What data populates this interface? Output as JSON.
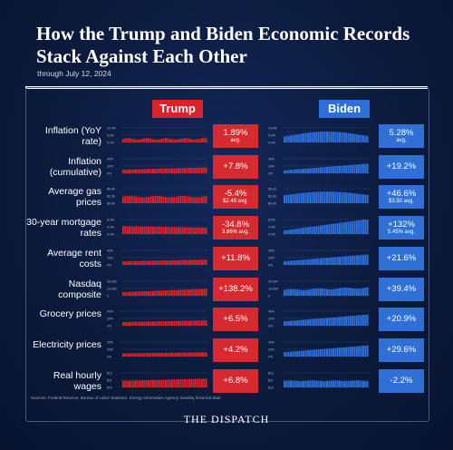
{
  "title": "How the Trump and Biden Economic Records Stack Against Each Other",
  "subtitle": "through July 12, 2024",
  "headers": {
    "trump": "Trump",
    "biden": "Biden"
  },
  "source": "Sources: Federal Reserve, Bureau of Labor Statistics, Energy Information Agency, Nasdaq historical data",
  "brand": "THE DISPATCH",
  "colors": {
    "trump": "#d9222a",
    "biden": "#2d6fd8",
    "background": "#0b1a3a"
  },
  "chart_data": {
    "type": "bar",
    "rows": [
      {
        "label": "Inflation (YoY rate)",
        "trump_value": "1.89%",
        "trump_sub": "avg.",
        "biden_value": "5.28%",
        "biden_sub": "avg.",
        "trump_ticks": [
          "10.0%",
          "5.0%",
          "0.0%"
        ],
        "biden_ticks": [
          "10.0%",
          "5.0%",
          "0.0%"
        ]
      },
      {
        "label": "Inflation (cumulative)",
        "trump_value": "+7.8%",
        "trump_sub": "",
        "biden_value": "+19.2%",
        "biden_sub": "",
        "trump_ticks": [
          "40%",
          "20%",
          "0%"
        ],
        "biden_ticks": [
          "40%",
          "20%",
          "0%"
        ]
      },
      {
        "label": "Average gas prices",
        "trump_value": "-5.4%",
        "trump_sub": "$2.49 avg.",
        "biden_value": "+46.6%",
        "biden_sub": "$3.50 avg.",
        "trump_ticks": [
          "$5.00",
          "$2.50",
          "$0.00"
        ],
        "biden_ticks": [
          "$5.00",
          "$2.50",
          "$0.00"
        ]
      },
      {
        "label": "30-year mortgage rates",
        "trump_value": "-34.8%",
        "trump_sub": "3.86% avg.",
        "biden_value": "+132%",
        "biden_sub": "5.45% avg.",
        "trump_ticks": [
          "8.0%",
          "4.0%",
          "0.0%"
        ],
        "biden_ticks": [
          "8.0%",
          "4.0%",
          "0.0%"
        ]
      },
      {
        "label": "Average rent costs",
        "trump_value": "+11.8%",
        "trump_sub": "",
        "biden_value": "+21.6%",
        "biden_sub": "",
        "trump_ticks": [
          "40%",
          "20%",
          "0%"
        ],
        "biden_ticks": [
          "40%",
          "20%",
          "0%"
        ]
      },
      {
        "label": "Nasdaq composite",
        "trump_value": "+138.2%",
        "trump_sub": "",
        "biden_value": "+39.4%",
        "biden_sub": "",
        "trump_ticks": [
          "20,000",
          "10,000",
          "0"
        ],
        "biden_ticks": [
          "20,000",
          "10,000",
          "0"
        ]
      },
      {
        "label": "Grocery prices",
        "trump_value": "+6.5%",
        "trump_sub": "",
        "biden_value": "+20.9%",
        "biden_sub": "",
        "trump_ticks": [
          "40%",
          "20%",
          "0%"
        ],
        "biden_ticks": [
          "40%",
          "20%",
          "0%"
        ]
      },
      {
        "label": "Electricity prices",
        "trump_value": "+4.2%",
        "trump_sub": "",
        "biden_value": "+29.6%",
        "biden_sub": "",
        "trump_ticks": [
          "40%",
          "20%",
          "0%"
        ],
        "biden_ticks": [
          "40%",
          "20%",
          "0%"
        ]
      },
      {
        "label": "Real hourly wages",
        "trump_value": "+6.8%",
        "trump_sub": "",
        "biden_value": "-2.2%",
        "biden_sub": "",
        "trump_ticks": [
          "$12",
          "$11",
          "$10"
        ],
        "biden_ticks": [
          "$12",
          "$11",
          "$10"
        ]
      }
    ]
  }
}
